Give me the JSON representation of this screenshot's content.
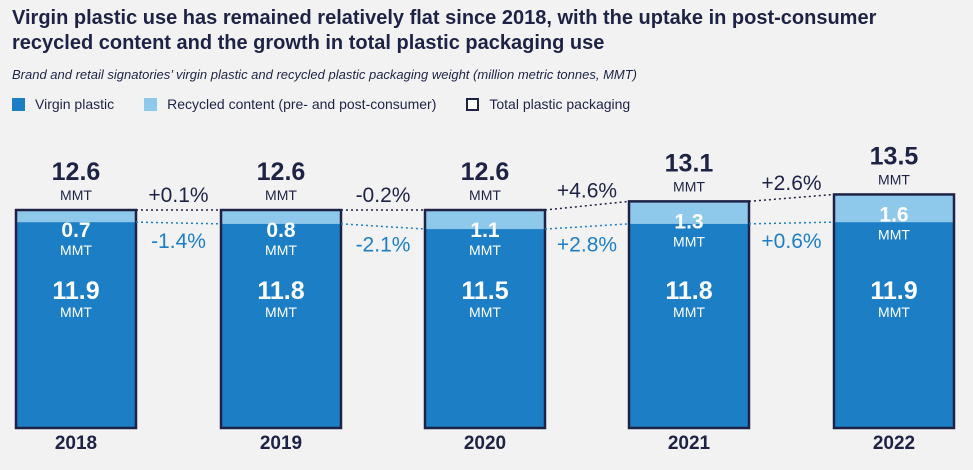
{
  "title": "Virgin plastic use has remained relatively flat since 2018, with the uptake in post-consumer recycled content and the growth in total plastic packaging use",
  "subtitle": "Brand and retail signatories’ virgin plastic and recycled plastic packaging weight (million metric tonnes, MMT)",
  "legend": [
    {
      "label": "Virgin plastic",
      "color": "#1c7fc5",
      "kind": "virgin"
    },
    {
      "label": "Recycled content (pre- and post-consumer)",
      "color": "#8ec8ea",
      "kind": "recycled"
    },
    {
      "label": "Total plastic packaging",
      "color": "#1e2346",
      "kind": "total"
    }
  ],
  "chart_data": {
    "type": "bar",
    "stacked": true,
    "categories": [
      "2018",
      "2019",
      "2020",
      "2021",
      "2022"
    ],
    "series": [
      {
        "name": "Virgin plastic",
        "values": [
          11.9,
          11.8,
          11.5,
          11.8,
          11.9
        ],
        "labels": [
          "11.9",
          "11.8",
          "11.5",
          "11.8",
          "11.9"
        ],
        "color": "#1c7fc5"
      },
      {
        "name": "Recycled content (pre- and post-consumer)",
        "values": [
          0.7,
          0.8,
          1.1,
          1.3,
          1.6
        ],
        "labels": [
          "0.7",
          "0.8",
          "1.1",
          "1.3",
          "1.6"
        ],
        "color": "#8ec8ea"
      }
    ],
    "totals": [
      12.6,
      12.6,
      12.6,
      13.1,
      13.5
    ],
    "total_labels": [
      "12.6",
      "12.6",
      "12.6",
      "13.1",
      "13.5"
    ],
    "unit": "MMT",
    "total_changes": [
      "+0.1%",
      "-0.2%",
      "+4.6%",
      "+2.6%"
    ],
    "virgin_changes": [
      "-1.4%",
      "-2.1%",
      "+2.8%",
      "+0.6%"
    ],
    "colors": {
      "total": "#1e2346",
      "virgin": "#1c7fc5",
      "recycled": "#8ec8ea",
      "virgin_change": "#1c7fc5"
    }
  }
}
